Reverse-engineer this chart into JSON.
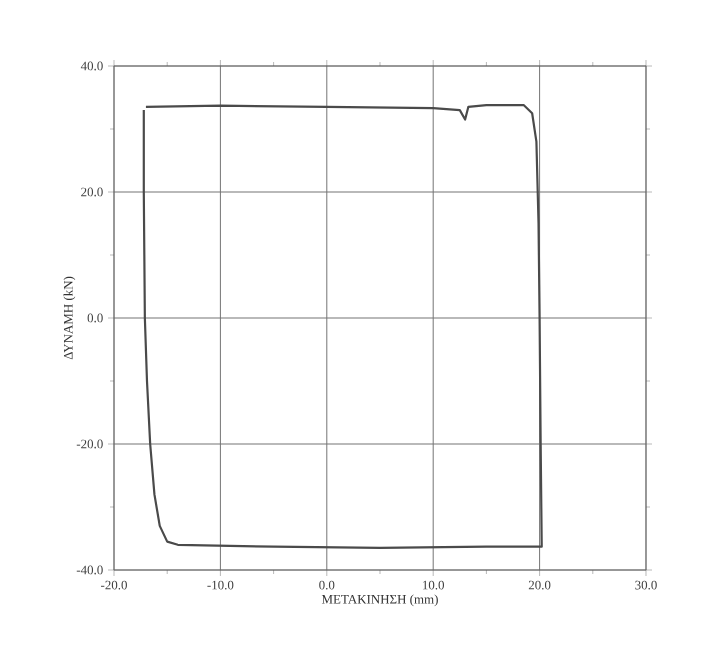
{
  "chart_data": {
    "type": "line",
    "xlabel": "ΜΕΤΑΚΙΝΗΣΗ (mm)",
    "ylabel": "ΔΥΝΑΜΗ (kN)",
    "series": [
      {
        "color": "#4a4a4a",
        "x": [
          -17.0,
          -10,
          0,
          10,
          12.5,
          13,
          13.3,
          15,
          18.5,
          19.3,
          19.7,
          19.9,
          20.0,
          20.1,
          20.2,
          15,
          5,
          -5,
          -14,
          -15,
          -15.7,
          -16.2,
          -16.6,
          -16.9,
          -17.1,
          -17.2,
          -17.2
        ],
        "values": [
          33.5,
          33.7,
          33.5,
          33.3,
          33.0,
          31.5,
          33.5,
          33.8,
          33.8,
          32.5,
          28,
          15,
          0,
          -20,
          -36.3,
          -36.3,
          -36.5,
          -36.3,
          -36.0,
          -35.5,
          -33,
          -28,
          -20,
          -10,
          0,
          20,
          33.0
        ]
      }
    ],
    "xlim": [
      -20,
      30
    ],
    "ylim": [
      -40,
      40
    ],
    "xticks": [
      {
        "value": -20,
        "label": "-20.0"
      },
      {
        "value": -10,
        "label": "-10.0"
      },
      {
        "value": 0,
        "label": "0.0"
      },
      {
        "value": 10,
        "label": "10.0"
      },
      {
        "value": 20,
        "label": "20.0"
      },
      {
        "value": 30,
        "label": "30.0"
      }
    ],
    "yticks": [
      {
        "value": -40,
        "label": "-40.0"
      },
      {
        "value": -20,
        "label": "-20.0"
      },
      {
        "value": 0,
        "label": "0.0"
      },
      {
        "value": 20,
        "label": "20.0"
      },
      {
        "value": 40,
        "label": "40.0"
      }
    ],
    "grid": true,
    "marker": "none",
    "line_style": "solid"
  }
}
